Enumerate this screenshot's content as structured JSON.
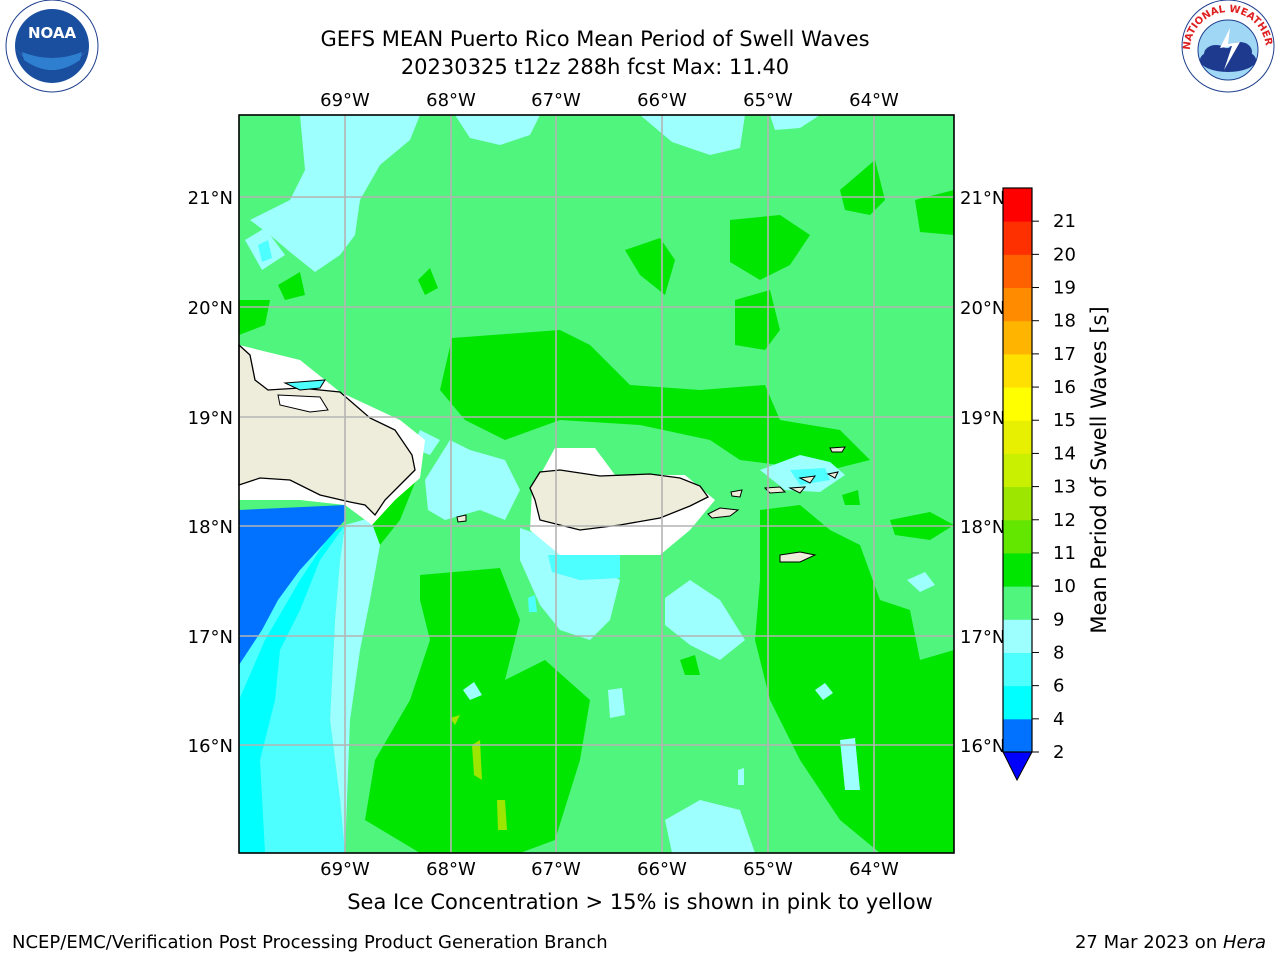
{
  "header": {
    "title_line1": "GEFS MEAN Puerto Rico Mean Period of Swell Waves",
    "title_line2": "20230325 t12z 288h fcst   Max: 11.40"
  },
  "logos": {
    "noaa_text": "NOAA",
    "noaa_ring": "NATIONAL OCEANIC AND ATMOSPHERIC ADMINISTRATION · U.S. DEPARTMENT OF COMMERCE",
    "nws_ring": "NATIONAL WEATHER SERVICE"
  },
  "map": {
    "lon_labels": [
      "69°W",
      "68°W",
      "67°W",
      "66°W",
      "65°W",
      "64°W"
    ],
    "lat_labels": [
      "21°N",
      "20°N",
      "19°N",
      "18°N",
      "17°N",
      "16°N"
    ]
  },
  "colorbar": {
    "label": "Mean Period of Swell Waves [s]",
    "ticks": [
      "2",
      "4",
      "6",
      "8",
      "9",
      "10",
      "11",
      "12",
      "13",
      "14",
      "15",
      "16",
      "17",
      "18",
      "19",
      "20",
      "21"
    ],
    "colors": [
      "#0072ff",
      "#00ffff",
      "#4dffff",
      "#9effff",
      "#50f57d",
      "#00e600",
      "#63e600",
      "#9ce600",
      "#c8f000",
      "#e6f000",
      "#ffff00",
      "#ffe000",
      "#ffb400",
      "#ff8c00",
      "#ff6000",
      "#ff3000",
      "#ff0000"
    ],
    "under_color": "#0000ff"
  },
  "caption": "Sea Ice Concentration > 15% is shown in pink to yellow",
  "footer": {
    "left": "NCEP/EMC/Verification Post Processing Product Generation Branch",
    "right_date": "27 Mar 2023 on ",
    "right_host": "Hera"
  },
  "colors": {
    "ocean_base": "#50f57d",
    "land": "#eeecda",
    "grid": "#b4b4b4"
  }
}
